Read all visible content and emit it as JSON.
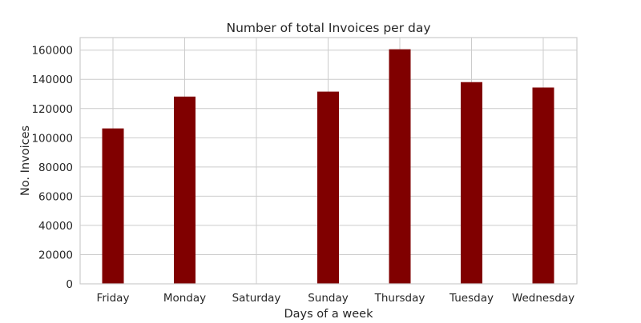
{
  "chart_data": {
    "type": "bar",
    "title": "Number of total Invoices per day",
    "xlabel": "Days of a week",
    "ylabel": "No. Invoices",
    "categories": [
      "Friday",
      "Monday",
      "Saturday",
      "Sunday",
      "Thursday",
      "Tuesday",
      "Wednesday"
    ],
    "values": [
      106400,
      128200,
      100,
      131600,
      160600,
      138100,
      134400
    ],
    "ylim": [
      0,
      168600
    ],
    "yticks": [
      0,
      20000,
      40000,
      60000,
      80000,
      100000,
      120000,
      140000,
      160000
    ],
    "ytick_labels": [
      "0",
      "20000",
      "40000",
      "60000",
      "80000",
      "100000",
      "120000",
      "140000",
      "160000"
    ],
    "grid": true,
    "legend": "none",
    "colors": {
      "bar": "#800000",
      "grid": "#cccccc",
      "frame": "#cccccc",
      "text": "#262626"
    }
  }
}
